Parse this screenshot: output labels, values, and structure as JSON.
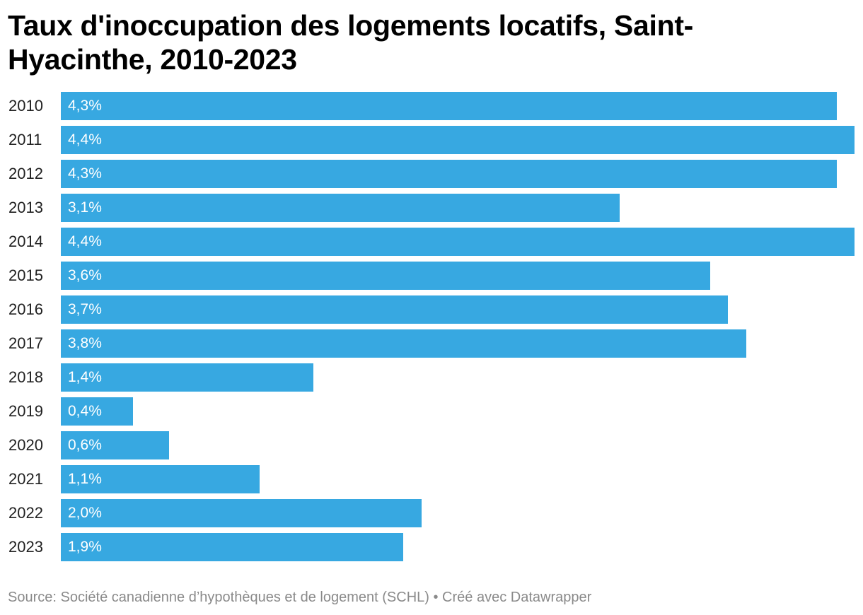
{
  "chart_data": {
    "type": "bar",
    "orientation": "horizontal",
    "title": "Taux d'inoccupation des logements locatifs, Saint-Hyacinthe, 2010-2023",
    "categories": [
      "2010",
      "2011",
      "2012",
      "2013",
      "2014",
      "2015",
      "2016",
      "2017",
      "2018",
      "2019",
      "2020",
      "2021",
      "2022",
      "2023"
    ],
    "values": [
      4.3,
      4.4,
      4.3,
      3.1,
      4.4,
      3.6,
      3.7,
      3.8,
      1.4,
      0.4,
      0.6,
      1.1,
      2.0,
      1.9
    ],
    "value_labels": [
      "4,3%",
      "4,4%",
      "4,3%",
      "3,1%",
      "4,4%",
      "3,6%",
      "3,7%",
      "3,8%",
      "1,4%",
      "0,4%",
      "0,6%",
      "1,1%",
      "2,0%",
      "1,9%"
    ],
    "xlim": [
      0,
      4.4
    ],
    "grid": false,
    "bar_color": "#37a8e1",
    "value_label_color": "#ffffff"
  },
  "footer": {
    "text": "Source: Société canadienne d’hypothèques et de logement (SCHL) • Créé avec Datawrapper"
  }
}
